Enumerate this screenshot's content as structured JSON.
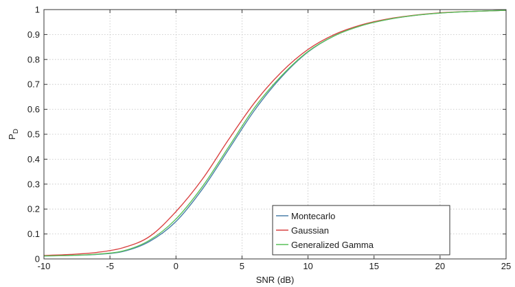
{
  "chart_data": {
    "type": "line",
    "xlabel": "SNR (dB)",
    "ylabel": "P",
    "ylabel_subscript": "D",
    "xlim": [
      -10,
      25
    ],
    "ylim": [
      0,
      1
    ],
    "x_ticks": [
      "-10",
      "-5",
      "0",
      "5",
      "10",
      "15",
      "20",
      "25"
    ],
    "x_tick_values": [
      -10,
      -5,
      0,
      5,
      10,
      15,
      20,
      25
    ],
    "y_ticks": [
      "0",
      "0.1",
      "0.2",
      "0.3",
      "0.4",
      "0.5",
      "0.6",
      "0.7",
      "0.8",
      "0.9",
      "1"
    ],
    "y_tick_values": [
      0,
      0.1,
      0.2,
      0.3,
      0.4,
      0.5,
      0.6,
      0.7,
      0.8,
      0.9,
      1
    ],
    "grid": true,
    "legend_position": "bottom-right",
    "series": [
      {
        "name": "Montecarlo",
        "color": "#4a7fa8",
        "x": [
          -10,
          -8,
          -6,
          -4,
          -2,
          0,
          2,
          4,
          6,
          8,
          10,
          12,
          14,
          16,
          18,
          20,
          22,
          25
        ],
        "y": [
          0.012,
          0.014,
          0.018,
          0.03,
          0.07,
          0.15,
          0.28,
          0.44,
          0.6,
          0.73,
          0.83,
          0.895,
          0.935,
          0.96,
          0.976,
          0.986,
          0.992,
          0.997
        ]
      },
      {
        "name": "Gaussian",
        "color": "#d94141",
        "x": [
          -10,
          -8,
          -6,
          -4,
          -2,
          0,
          2,
          4,
          6,
          8,
          10,
          12,
          14,
          16,
          18,
          20,
          22,
          25
        ],
        "y": [
          0.014,
          0.018,
          0.026,
          0.045,
          0.09,
          0.19,
          0.32,
          0.48,
          0.63,
          0.75,
          0.84,
          0.9,
          0.938,
          0.962,
          0.977,
          0.987,
          0.992,
          0.997
        ]
      },
      {
        "name": "Generalized Gamma",
        "color": "#59c159",
        "x": [
          -10,
          -8,
          -6,
          -4,
          -2,
          0,
          2,
          4,
          6,
          8,
          10,
          12,
          14,
          16,
          18,
          20,
          22,
          25
        ],
        "y": [
          0.012,
          0.014,
          0.019,
          0.032,
          0.075,
          0.16,
          0.29,
          0.45,
          0.61,
          0.735,
          0.832,
          0.895,
          0.935,
          0.96,
          0.976,
          0.986,
          0.992,
          0.997
        ]
      }
    ]
  }
}
